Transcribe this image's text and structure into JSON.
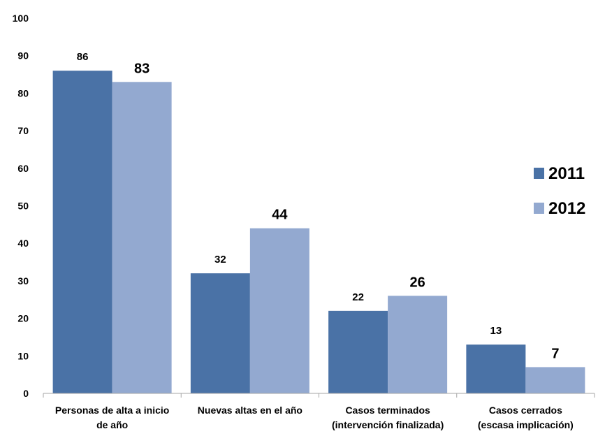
{
  "chart_data": {
    "type": "bar",
    "title": "",
    "xlabel": "",
    "ylabel": "",
    "ylim": [
      0,
      100
    ],
    "yticks": [
      "0",
      "10",
      "20",
      "30",
      "40",
      "50",
      "60",
      "70",
      "80",
      "90",
      "100"
    ],
    "grid": false,
    "legend_position": "right",
    "categories": [
      [
        "Personas de alta a inicio",
        "de año"
      ],
      [
        "Nuevas altas en el año"
      ],
      [
        "Casos terminados",
        "(intervención finalizada)"
      ],
      [
        "Casos cerrados",
        "(escasa implicación)"
      ]
    ],
    "series": [
      {
        "name": "2011",
        "color": "#4a72a6",
        "values": [
          86,
          32,
          22,
          13
        ]
      },
      {
        "name": "2012",
        "color": "#93a9d0",
        "values": [
          83,
          44,
          26,
          7
        ]
      }
    ]
  }
}
